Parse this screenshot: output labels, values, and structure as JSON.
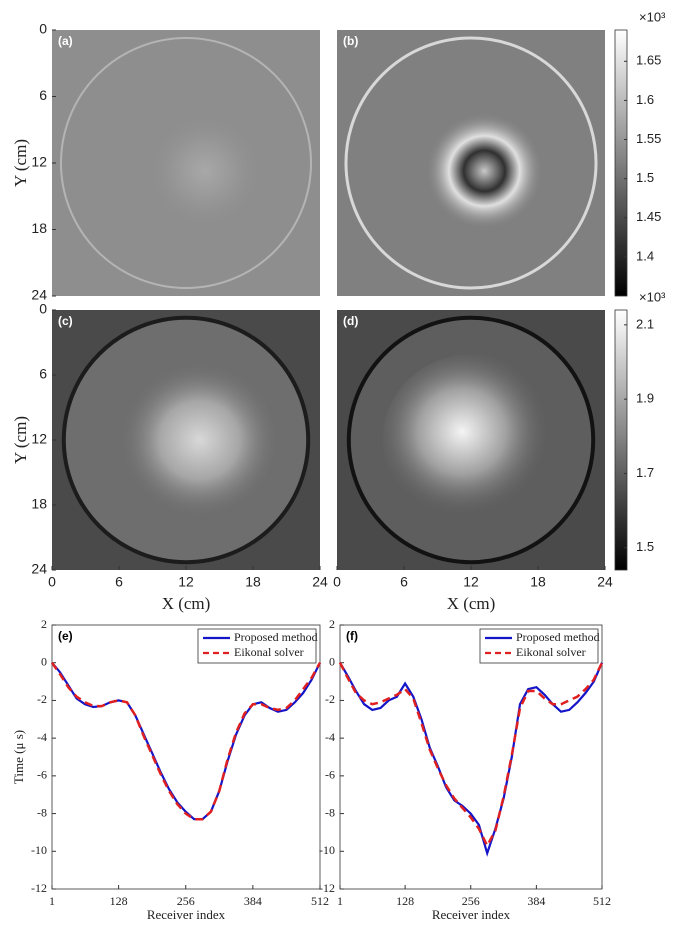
{
  "chart_data": [
    {
      "type": "image",
      "label": "(a)",
      "xlim": [
        0,
        24
      ],
      "ylim": [
        0,
        24
      ],
      "yticks": [
        0,
        6,
        12,
        18,
        24
      ],
      "ylabel": "Y (cm)"
    },
    {
      "type": "image",
      "label": "(b)",
      "xlim": [
        0,
        24
      ],
      "ylim": [
        0,
        24
      ],
      "clim": [
        1.35,
        1.69
      ],
      "cticks": [
        1.4,
        1.45,
        1.5,
        1.55,
        1.6,
        1.65
      ],
      "colorbar_exponent": "×10³"
    },
    {
      "type": "image",
      "label": "(c)",
      "xlim": [
        0,
        24
      ],
      "ylim": [
        0,
        24
      ],
      "xticks": [
        0,
        6,
        12,
        18,
        24
      ],
      "yticks": [
        0,
        6,
        12,
        18,
        24
      ],
      "xlabel": "X (cm)",
      "ylabel": "Y (cm)"
    },
    {
      "type": "image",
      "label": "(d)",
      "xlim": [
        0,
        24
      ],
      "ylim": [
        0,
        24
      ],
      "xticks": [
        0,
        6,
        12,
        18,
        24
      ],
      "xlabel": "X (cm)",
      "clim": [
        1.44,
        2.14
      ],
      "cticks": [
        1.5,
        1.7,
        1.9,
        2.1
      ],
      "colorbar_exponent": "×10³"
    },
    {
      "type": "line",
      "label": "(e)",
      "xlabel": "Receiver index",
      "ylabel": "Time (μ s)",
      "xlim": [
        1,
        512
      ],
      "ylim": [
        -12,
        2
      ],
      "xticks": [
        1,
        128,
        256,
        384,
        512
      ],
      "yticks": [
        -12,
        -10,
        -8,
        -6,
        -4,
        -2,
        0,
        2
      ],
      "legend": "upper right",
      "x": [
        1,
        16,
        32,
        48,
        64,
        80,
        96,
        112,
        128,
        144,
        160,
        176,
        192,
        208,
        224,
        240,
        256,
        272,
        288,
        304,
        320,
        336,
        352,
        368,
        384,
        400,
        416,
        432,
        448,
        464,
        480,
        496,
        512
      ],
      "series": [
        {
          "name": "Proposed method",
          "color": "#1414c8",
          "dashed": false,
          "values": [
            0,
            -0.5,
            -1.2,
            -1.9,
            -2.2,
            -2.35,
            -2.3,
            -2.1,
            -2.0,
            -2.1,
            -2.8,
            -3.8,
            -4.8,
            -5.8,
            -6.7,
            -7.4,
            -7.9,
            -8.3,
            -8.3,
            -7.9,
            -6.8,
            -5.2,
            -3.8,
            -2.8,
            -2.2,
            -2.1,
            -2.4,
            -2.6,
            -2.5,
            -2.1,
            -1.6,
            -0.9,
            0
          ]
        },
        {
          "name": "Eikonal solver",
          "color": "#e02020",
          "dashed": true,
          "values": [
            0,
            -0.6,
            -1.3,
            -1.8,
            -2.1,
            -2.3,
            -2.3,
            -2.1,
            -2.0,
            -2.1,
            -2.8,
            -3.9,
            -4.9,
            -5.9,
            -6.8,
            -7.5,
            -8.0,
            -8.3,
            -8.3,
            -7.9,
            -6.8,
            -5.1,
            -3.7,
            -2.7,
            -2.2,
            -2.2,
            -2.4,
            -2.5,
            -2.4,
            -2.0,
            -1.4,
            -0.8,
            0
          ]
        }
      ]
    },
    {
      "type": "line",
      "label": "(f)",
      "xlabel": "Receiver index",
      "xlim": [
        1,
        512
      ],
      "ylim": [
        -12,
        2
      ],
      "xticks": [
        1,
        128,
        256,
        384,
        512
      ],
      "yticks": [
        -12,
        -10,
        -8,
        -6,
        -4,
        -2,
        0,
        2
      ],
      "legend": "upper right",
      "x": [
        1,
        16,
        32,
        48,
        64,
        80,
        96,
        112,
        128,
        144,
        160,
        176,
        192,
        208,
        224,
        240,
        256,
        272,
        288,
        304,
        320,
        336,
        352,
        368,
        384,
        400,
        416,
        432,
        448,
        464,
        480,
        496,
        512
      ],
      "series": [
        {
          "name": "Proposed method",
          "color": "#1414c8",
          "dashed": false,
          "values": [
            0,
            -0.7,
            -1.5,
            -2.2,
            -2.5,
            -2.4,
            -2.0,
            -1.8,
            -1.1,
            -1.8,
            -3.0,
            -4.5,
            -5.5,
            -6.6,
            -7.3,
            -7.6,
            -8.0,
            -8.6,
            -10.1,
            -8.8,
            -7.2,
            -5.0,
            -2.2,
            -1.4,
            -1.3,
            -1.7,
            -2.2,
            -2.6,
            -2.5,
            -2.1,
            -1.6,
            -1.0,
            0
          ]
        },
        {
          "name": "Eikonal solver",
          "color": "#e02020",
          "dashed": true,
          "values": [
            0,
            -0.8,
            -1.6,
            -2.0,
            -2.2,
            -2.1,
            -1.9,
            -1.7,
            -1.4,
            -1.9,
            -3.2,
            -4.6,
            -5.6,
            -6.5,
            -7.2,
            -7.7,
            -8.2,
            -8.8,
            -9.7,
            -8.9,
            -7.1,
            -4.9,
            -2.4,
            -1.5,
            -1.5,
            -1.9,
            -2.2,
            -2.2,
            -2.0,
            -1.8,
            -1.4,
            -0.9,
            0
          ]
        }
      ]
    }
  ]
}
